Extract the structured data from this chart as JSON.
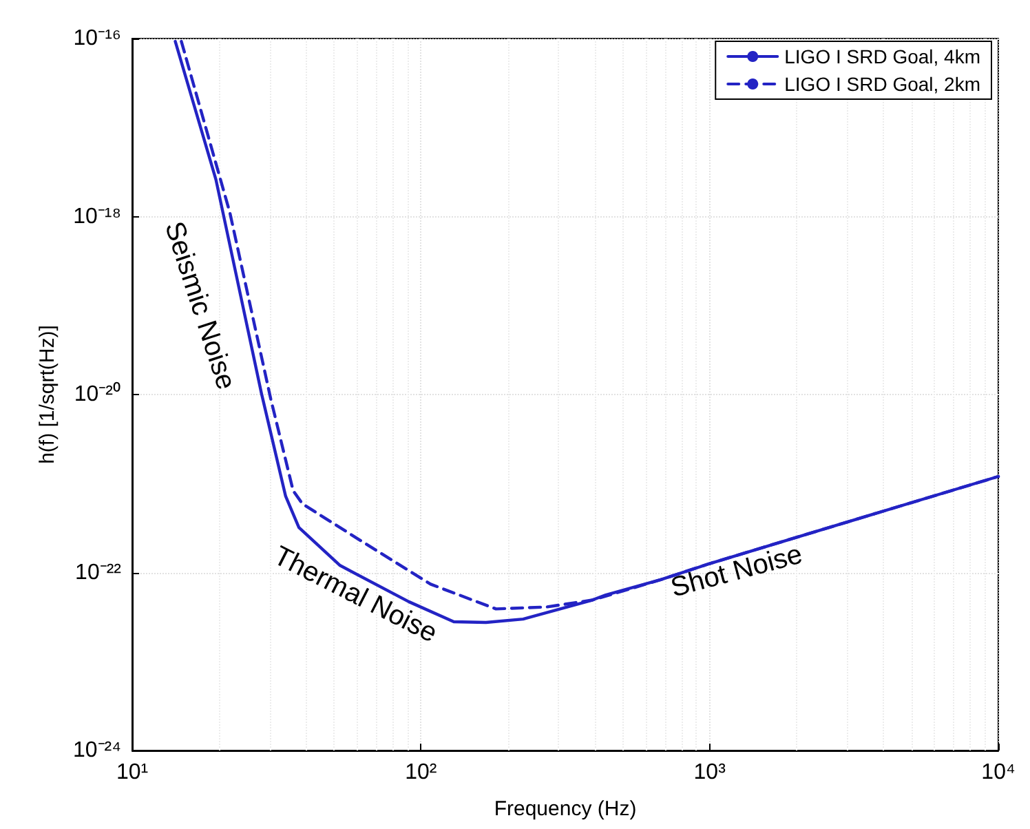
{
  "chart_data": {
    "type": "line",
    "xlabel": "Frequency (Hz)",
    "ylabel": "h(f) [1/sqrt(Hz)]",
    "log": "xy",
    "grid": true,
    "legend": "top right",
    "marker": "none",
    "xlim": [
      10,
      10000
    ],
    "ylim": [
      1e-24,
      1e-16
    ],
    "xticks": [
      {
        "value": 10,
        "label": "10¹"
      },
      {
        "value": 100,
        "label": "10²"
      },
      {
        "value": 1000,
        "label": "10³"
      },
      {
        "value": 10000,
        "label": "10⁴"
      }
    ],
    "yticks": [
      {
        "value": 1e-24,
        "label": "10⁻²⁴"
      },
      {
        "value": 1e-22,
        "label": "10⁻²²"
      },
      {
        "value": 1e-20,
        "label": "10⁻²⁰"
      },
      {
        "value": 1e-18,
        "label": "10⁻¹⁸"
      },
      {
        "value": 1e-16,
        "label": "10⁻¹⁶"
      }
    ],
    "series": [
      {
        "name": "LIGO I SRD Goal, 4km",
        "color": "#2323c4",
        "line_style": "solid",
        "x": [
          14.1,
          19.5,
          28,
          34,
          37.8,
          52.5,
          90.8,
          130,
          168,
          226,
          392,
          437,
          677,
          1000,
          3000,
          10000
        ],
        "values": [
          9.3e-17,
          2.6e-18,
          1.05e-20,
          7.2e-22,
          3.2e-22,
          1.2e-22,
          4.7e-23,
          2.8e-23,
          2.75e-23,
          3e-23,
          4.9e-23,
          5.6e-23,
          8.3e-23,
          1.26e-22,
          3.7e-22,
          1.2e-21
        ]
      },
      {
        "name": "LIGO I SRD Goal, 2km",
        "color": "#2323c4",
        "line_style": "dashed",
        "x": [
          14.8,
          21.8,
          30.2,
          36.1,
          38.9,
          63,
          108,
          182,
          272,
          392,
          677,
          1000,
          3000,
          10000
        ],
        "values": [
          9.3e-17,
          1.1e-18,
          8.9e-21,
          8.3e-22,
          5.9e-22,
          2.2e-22,
          7.4e-23,
          3.9e-23,
          4.1e-23,
          4.9e-23,
          8.3e-23,
          1.26e-22,
          3.7e-22,
          1.2e-21
        ]
      }
    ],
    "annotations": [
      "Seismic Noise",
      "Thermal Noise",
      "Shot Noise"
    ]
  }
}
